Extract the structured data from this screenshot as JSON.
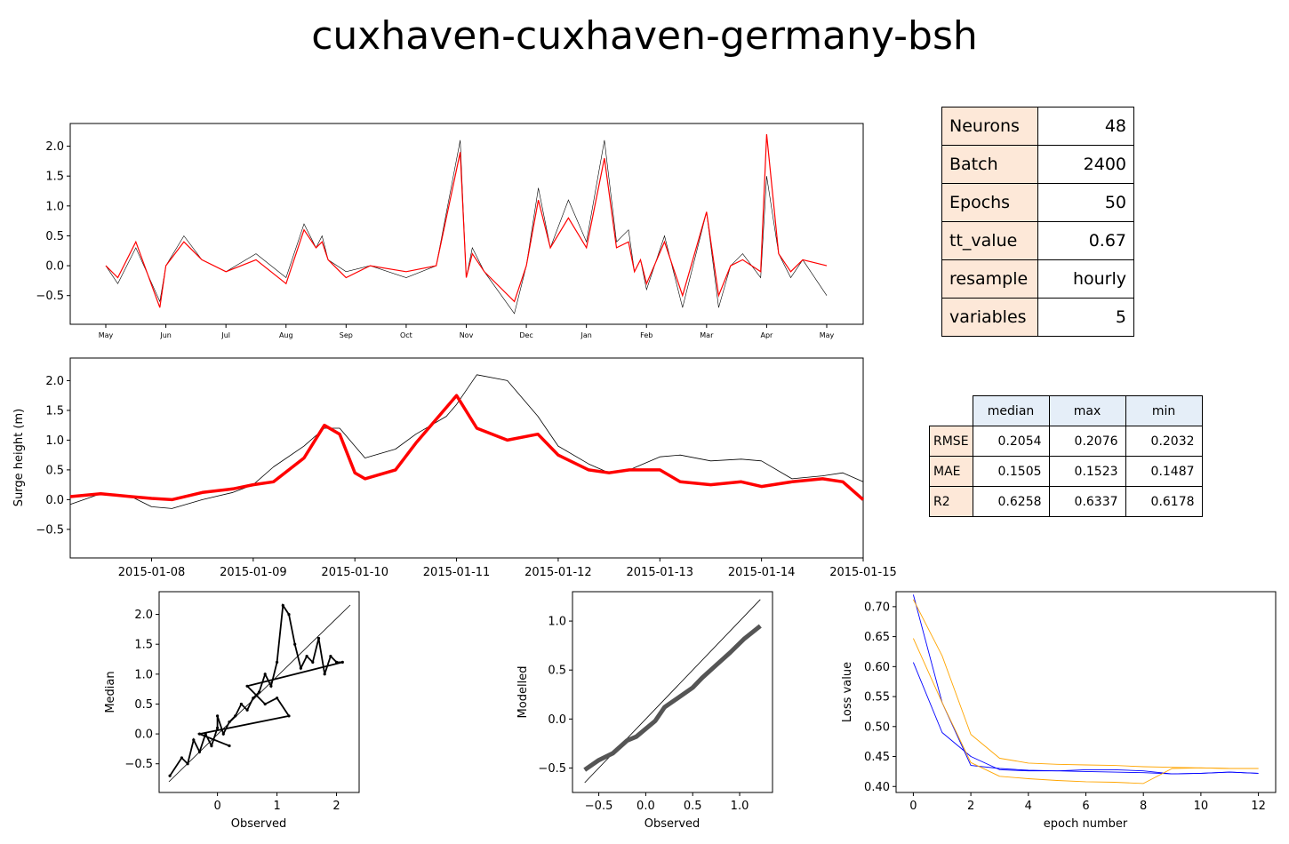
{
  "title": "cuxhaven-cuxhaven-germany-bsh",
  "colors": {
    "observed": "#000000",
    "modelled": "#ff0000",
    "loss_a": "#0000ff",
    "loss_b": "#ffa500",
    "header_blue": "#e5eef8",
    "key_peach": "#fde8d8"
  },
  "params_table": [
    {
      "key": "Neurons",
      "value": "48"
    },
    {
      "key": "Batch",
      "value": "2400"
    },
    {
      "key": "Epochs",
      "value": "50"
    },
    {
      "key": "tt_value",
      "value": "0.67"
    },
    {
      "key": "resample",
      "value": "hourly"
    },
    {
      "key": "variables",
      "value": "5"
    }
  ],
  "metrics_table": {
    "columns": [
      "median",
      "max",
      "min"
    ],
    "rows": [
      {
        "name": "RMSE",
        "values": [
          "0.2054",
          "0.2076",
          "0.2032"
        ]
      },
      {
        "name": "MAE",
        "values": [
          "0.1505",
          "0.1523",
          "0.1487"
        ]
      },
      {
        "name": "R2",
        "values": [
          "0.6258",
          "0.6337",
          "0.6178"
        ]
      }
    ]
  },
  "chart_data": [
    {
      "id": "annual",
      "type": "line",
      "title": "",
      "xlabel": "",
      "ylabel": "",
      "x_ticks": [
        "May",
        "Jun",
        "Jul",
        "Aug",
        "Sep",
        "Oct",
        "Nov",
        "Dec",
        "Jan",
        "Feb",
        "Mar",
        "Apr",
        "May"
      ],
      "y_ticks": [
        -0.5,
        0.0,
        0.5,
        1.0,
        1.5,
        2.0
      ],
      "ylim": [
        -0.98,
        2.38
      ],
      "series": [
        {
          "color": "#000000",
          "x": [
            0,
            0.2,
            0.5,
            0.9,
            1.0,
            1.3,
            1.6,
            2.0,
            2.5,
            3.0,
            3.3,
            3.5,
            3.6,
            3.7,
            4.0,
            4.4,
            5.0,
            5.5,
            5.9,
            6.0,
            6.1,
            6.3,
            6.8,
            7.0,
            7.2,
            7.4,
            7.7,
            8.0,
            8.3,
            8.5,
            8.7,
            8.8,
            8.9,
            9.0,
            9.3,
            9.6,
            10.0,
            10.2,
            10.4,
            10.6,
            10.9,
            11.0,
            11.2,
            11.4,
            11.6,
            12.0
          ],
          "y": [
            0.0,
            -0.3,
            0.3,
            -0.6,
            0.0,
            0.5,
            0.1,
            -0.1,
            0.2,
            -0.2,
            0.7,
            0.3,
            0.5,
            0.1,
            -0.1,
            0.0,
            -0.2,
            0.0,
            2.1,
            -0.2,
            0.3,
            -0.1,
            -0.8,
            0.0,
            1.3,
            0.3,
            1.1,
            0.4,
            2.1,
            0.4,
            0.6,
            -0.1,
            0.1,
            -0.4,
            0.5,
            -0.7,
            0.9,
            -0.7,
            0.0,
            0.2,
            -0.2,
            1.5,
            0.2,
            -0.2,
            0.1,
            -0.5
          ]
        },
        {
          "color": "#ff0000",
          "x": [
            0,
            0.2,
            0.5,
            0.9,
            1.0,
            1.3,
            1.6,
            2.0,
            2.5,
            3.0,
            3.3,
            3.5,
            3.6,
            3.7,
            4.0,
            4.4,
            5.0,
            5.5,
            5.9,
            6.0,
            6.1,
            6.3,
            6.8,
            7.0,
            7.2,
            7.4,
            7.7,
            8.0,
            8.3,
            8.5,
            8.7,
            8.8,
            8.9,
            9.0,
            9.3,
            9.6,
            10.0,
            10.2,
            10.4,
            10.6,
            10.9,
            11.0,
            11.2,
            11.4,
            11.6,
            12.0
          ],
          "y": [
            0.0,
            -0.2,
            0.4,
            -0.7,
            0.0,
            0.4,
            0.1,
            -0.1,
            0.1,
            -0.3,
            0.6,
            0.3,
            0.4,
            0.1,
            -0.2,
            0.0,
            -0.1,
            0.0,
            1.9,
            -0.2,
            0.2,
            -0.1,
            -0.6,
            0.0,
            1.1,
            0.3,
            0.8,
            0.3,
            1.8,
            0.3,
            0.4,
            -0.1,
            0.1,
            -0.3,
            0.4,
            -0.5,
            0.9,
            -0.5,
            0.0,
            0.1,
            -0.1,
            2.2,
            0.2,
            -0.1,
            0.1,
            0.0
          ]
        }
      ]
    },
    {
      "id": "week",
      "type": "line",
      "title": "",
      "xlabel": "",
      "ylabel": "Surge height (m)",
      "x_ticks": [
        "2015-01-08",
        "2015-01-09",
        "2015-01-10",
        "2015-01-11",
        "2015-01-12",
        "2015-01-13",
        "2015-01-14",
        "2015-01-15"
      ],
      "xlim": [
        7.2,
        15.0
      ],
      "y_ticks": [
        -0.5,
        0.0,
        0.5,
        1.0,
        1.5,
        2.0
      ],
      "ylim": [
        -0.98,
        2.38
      ],
      "series": [
        {
          "color": "#000000",
          "x": [
            7.2,
            7.5,
            7.8,
            8.0,
            8.2,
            8.5,
            8.8,
            9.0,
            9.2,
            9.5,
            9.7,
            9.85,
            10.0,
            10.1,
            10.4,
            10.6,
            10.9,
            11.0,
            11.2,
            11.5,
            11.8,
            12.0,
            12.3,
            12.5,
            12.7,
            13.0,
            13.2,
            13.5,
            13.8,
            14.0,
            14.3,
            14.6,
            14.8,
            15.0
          ],
          "y": [
            -0.08,
            0.1,
            0.05,
            -0.12,
            -0.15,
            0.0,
            0.12,
            0.25,
            0.55,
            0.9,
            1.2,
            1.2,
            0.9,
            0.7,
            0.85,
            1.1,
            1.4,
            1.6,
            2.1,
            2.0,
            1.4,
            0.9,
            0.6,
            0.45,
            0.5,
            0.72,
            0.75,
            0.65,
            0.68,
            0.65,
            0.35,
            0.4,
            0.45,
            0.3
          ]
        },
        {
          "color": "#ff0000",
          "x": [
            7.2,
            7.5,
            7.8,
            8.0,
            8.2,
            8.5,
            8.8,
            9.0,
            9.2,
            9.5,
            9.7,
            9.85,
            10.0,
            10.1,
            10.4,
            10.6,
            10.9,
            11.0,
            11.2,
            11.5,
            11.8,
            12.0,
            12.3,
            12.5,
            12.7,
            13.0,
            13.2,
            13.5,
            13.8,
            14.0,
            14.3,
            14.6,
            14.8,
            15.0
          ],
          "y": [
            0.05,
            0.1,
            0.05,
            0.02,
            0.0,
            0.12,
            0.18,
            0.25,
            0.3,
            0.7,
            1.25,
            1.1,
            0.45,
            0.35,
            0.5,
            0.95,
            1.55,
            1.75,
            1.2,
            1.0,
            1.1,
            0.75,
            0.5,
            0.45,
            0.5,
            0.5,
            0.3,
            0.25,
            0.3,
            0.22,
            0.3,
            0.35,
            0.3,
            0.0
          ]
        }
      ]
    },
    {
      "id": "scatter",
      "type": "scatter",
      "title": "",
      "xlabel": "Observed",
      "ylabel": "Median",
      "x_ticks": [
        0,
        1,
        2
      ],
      "y_ticks": [
        -0.5,
        0.0,
        0.5,
        1.0,
        1.5,
        2.0
      ],
      "xlim": [
        -0.98,
        2.38
      ],
      "ylim": [
        -0.98,
        2.38
      ],
      "x": [
        -0.8,
        -0.6,
        -0.5,
        -0.4,
        -0.3,
        -0.2,
        -0.1,
        0.0,
        0.0,
        0.1,
        0.2,
        0.3,
        0.4,
        0.5,
        0.6,
        0.7,
        0.8,
        0.9,
        1.0,
        1.1,
        1.2,
        1.3,
        1.4,
        1.5,
        1.6,
        1.7,
        1.8,
        1.9,
        2.0,
        2.1,
        0.5,
        0.8,
        1.0,
        1.2,
        -0.3,
        0.2
      ],
      "y": [
        -0.7,
        -0.4,
        -0.5,
        -0.1,
        -0.3,
        0.0,
        -0.2,
        0.1,
        0.3,
        0.0,
        0.2,
        0.3,
        0.5,
        0.4,
        0.6,
        0.7,
        1.0,
        0.8,
        1.2,
        2.15,
        2.0,
        1.5,
        1.1,
        1.3,
        1.2,
        1.6,
        1.0,
        1.3,
        1.2,
        1.2,
        0.8,
        0.5,
        0.6,
        0.3,
        0.0,
        -0.2
      ]
    },
    {
      "id": "qq",
      "type": "line",
      "title": "",
      "xlabel": "Observed",
      "ylabel": "Modelled",
      "x_ticks": [
        -0.5,
        0.0,
        0.5,
        1.0
      ],
      "y_ticks": [
        -0.5,
        0.0,
        0.5,
        1.0
      ],
      "xlim": [
        -0.78,
        1.35
      ],
      "ylim": [
        -0.75,
        1.3
      ],
      "series": [
        {
          "color": "#000000",
          "x": [
            -0.65,
            1.22
          ],
          "y": [
            -0.65,
            1.22
          ]
        },
        {
          "color": "#555555",
          "x": [
            -0.65,
            -0.5,
            -0.35,
            -0.2,
            -0.1,
            0.0,
            0.1,
            0.2,
            0.35,
            0.5,
            0.6,
            0.75,
            0.9,
            1.05,
            1.22
          ],
          "y": [
            -0.52,
            -0.42,
            -0.35,
            -0.22,
            -0.18,
            -0.1,
            -0.02,
            0.12,
            0.22,
            0.32,
            0.42,
            0.55,
            0.68,
            0.82,
            0.95
          ]
        }
      ]
    },
    {
      "id": "loss",
      "type": "line",
      "title": "",
      "xlabel": "epoch number",
      "ylabel": "Loss value",
      "x_ticks": [
        0,
        2,
        4,
        6,
        8,
        10,
        12
      ],
      "y_ticks": [
        0.4,
        0.45,
        0.5,
        0.55,
        0.6,
        0.65,
        0.7
      ],
      "xlim": [
        -0.6,
        12.6
      ],
      "ylim": [
        0.39,
        0.725
      ],
      "series": [
        {
          "color": "#0000ff",
          "x": [
            0,
            1,
            2,
            3,
            4,
            5,
            6,
            7,
            8,
            9,
            10,
            11,
            12
          ],
          "y": [
            0.72,
            0.54,
            0.435,
            0.43,
            0.427,
            0.426,
            0.425,
            0.424,
            0.423,
            0.421,
            0.422,
            0.424,
            0.422
          ]
        },
        {
          "color": "#0000ff",
          "x": [
            0,
            1,
            2,
            3,
            4,
            5,
            6,
            7,
            8,
            9,
            10,
            11,
            12
          ],
          "y": [
            0.607,
            0.49,
            0.45,
            0.428,
            0.426,
            0.426,
            0.428,
            0.428,
            0.426,
            0.421,
            0.422,
            0.424,
            0.422
          ]
        },
        {
          "color": "#ffa500",
          "x": [
            0,
            1,
            2,
            3,
            4,
            5,
            6,
            7,
            8,
            9,
            10,
            11,
            12
          ],
          "y": [
            0.712,
            0.618,
            0.487,
            0.447,
            0.439,
            0.437,
            0.436,
            0.435,
            0.433,
            0.432,
            0.431,
            0.43,
            0.43
          ]
        },
        {
          "color": "#ffa500",
          "x": [
            0,
            1,
            2,
            3,
            4,
            5,
            6,
            7,
            8,
            9,
            10,
            11,
            12
          ],
          "y": [
            0.647,
            0.54,
            0.44,
            0.417,
            0.413,
            0.41,
            0.408,
            0.407,
            0.405,
            0.43,
            0.431,
            0.43,
            0.43
          ]
        }
      ]
    }
  ]
}
